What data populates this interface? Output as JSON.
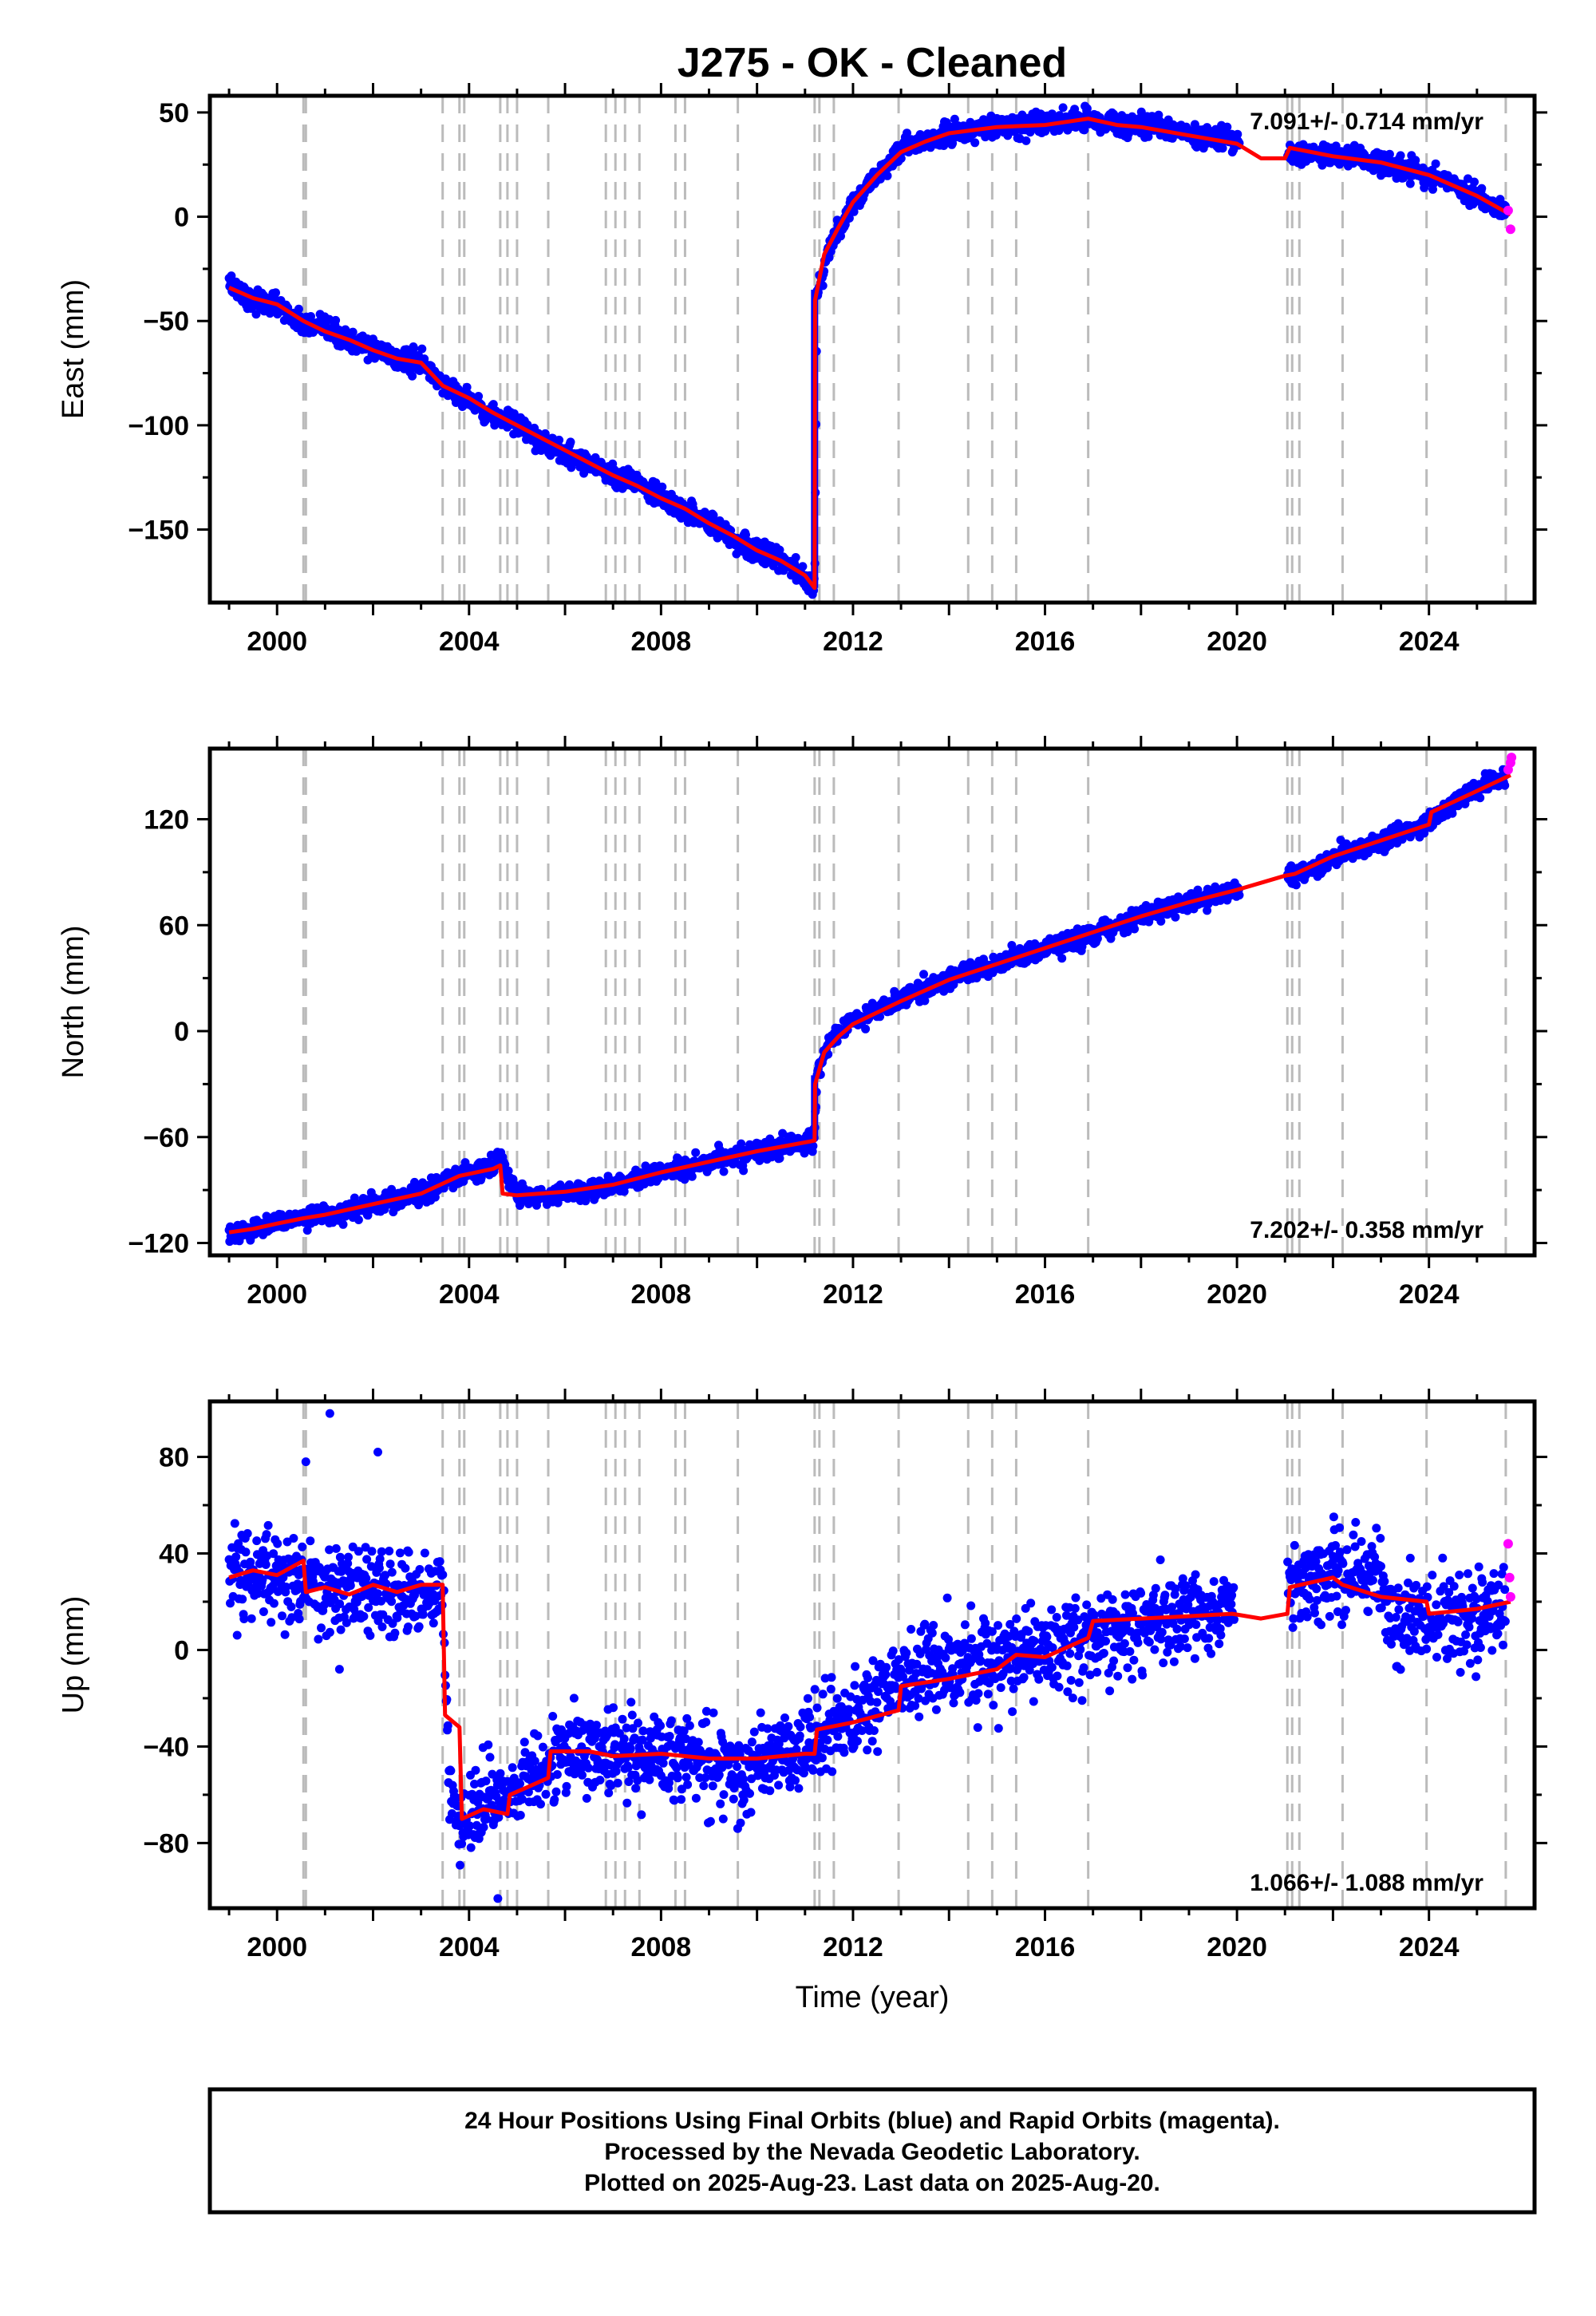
{
  "title": "J275  - OK - Cleaned",
  "x_tick_labels": [
    "2000",
    "2004",
    "2008",
    "2012",
    "2016",
    "2020",
    "2024"
  ],
  "x_axis_label": "Time (year)",
  "colors": {
    "final_orbits": "#0000ff",
    "rapid_orbits": "#ff00ff",
    "model": "#ff0000",
    "event_lines": "#bbbbbb",
    "frame": "#000000"
  },
  "footer": {
    "line1": "24 Hour Positions Using Final Orbits (blue) and Rapid Orbits (magenta).",
    "line2": "Processed by the Nevada Geodetic Laboratory.",
    "line3": "Plotted on 2025-Aug-23. Last data on 2025-Aug-20."
  },
  "chart_data": [
    {
      "type": "scatter",
      "panel": "east",
      "ylabel": "East (mm)",
      "xlabel": "",
      "xlim": [
        1998.6,
        2026.2
      ],
      "ylim": [
        -185,
        58
      ],
      "yticks": [
        50,
        0,
        -50,
        -100,
        -150
      ],
      "y_tick_labels": [
        "50",
        "0",
        "−50",
        "−100",
        "−150"
      ],
      "rate_text": "7.091+/- 0.714 mm/yr",
      "rate_position": "top-right",
      "event_lines": [
        2000.55,
        2000.6,
        2003.45,
        2003.8,
        2003.9,
        2004.65,
        2004.8,
        2005.0,
        2005.65,
        2006.85,
        2007.05,
        2007.25,
        2007.55,
        2008.3,
        2008.5,
        2009.6,
        2011.2,
        2011.3,
        2011.6,
        2012.95,
        2014.4,
        2014.9,
        2015.4,
        2016.9,
        2021.05,
        2021.15,
        2021.3,
        2022.2,
        2023.95,
        2025.6
      ],
      "series": [
        {
          "role": "final-orbits",
          "x": [
            1999.0,
            1999.5,
            2000.0,
            2000.55,
            2001.0,
            2001.5,
            2002.0,
            2002.5,
            2003.0,
            2003.45,
            2004.0,
            2004.5,
            2005.0,
            2005.5,
            2006.0,
            2006.5,
            2007.0,
            2007.5,
            2008.0,
            2008.5,
            2009.0,
            2009.5,
            2010.0,
            2010.5,
            2011.0,
            2011.2,
            2011.25,
            2011.5,
            2012.0,
            2012.5,
            2013.0,
            2013.5,
            2014.0,
            2015.0,
            2016.0,
            2016.9,
            2017.5,
            2018.0,
            2019.0,
            2020.0,
            2021.2,
            2022.0,
            2023.0,
            2024.0,
            2025.0,
            2025.6
          ],
          "y": [
            -32,
            -40,
            -42,
            -52,
            -54,
            -60,
            -63,
            -68,
            -70,
            -80,
            -88,
            -95,
            -100,
            -107,
            -113,
            -118,
            -124,
            -128,
            -136,
            -140,
            -147,
            -154,
            -160,
            -165,
            -173,
            -178,
            -35,
            -15,
            5,
            20,
            32,
            36,
            40,
            43,
            44,
            47,
            44,
            44,
            40,
            36,
            30,
            30,
            26,
            20,
            10,
            2
          ]
        },
        {
          "role": "rapid-orbits",
          "x": [
            2025.65,
            2025.7
          ],
          "y": [
            3,
            -6
          ]
        },
        {
          "role": "model",
          "x": [
            1999.0,
            1999.5,
            2000.0,
            2000.55,
            2001.0,
            2001.5,
            2002.0,
            2002.5,
            2003.0,
            2003.45,
            2004.0,
            2004.5,
            2005.0,
            2005.5,
            2006.0,
            2006.5,
            2007.0,
            2007.5,
            2008.0,
            2008.5,
            2009.0,
            2009.5,
            2010.0,
            2010.5,
            2011.0,
            2011.2,
            2011.21,
            2011.4,
            2011.7,
            2012.0,
            2012.5,
            2013.0,
            2013.5,
            2014.0,
            2015.0,
            2016.0,
            2016.9,
            2017.5,
            2018.0,
            2019.0,
            2020.0,
            2020.5,
            2021.0,
            2021.1,
            2022.0,
            2023.0,
            2024.0,
            2025.0,
            2025.7
          ],
          "y": [
            -34,
            -39,
            -42,
            -50,
            -55,
            -59,
            -64,
            -68,
            -70,
            -81,
            -87,
            -94,
            -100,
            -106,
            -112,
            -118,
            -124,
            -129,
            -135,
            -140,
            -147,
            -153,
            -160,
            -165,
            -172,
            -178,
            -40,
            -18,
            -5,
            7,
            20,
            31,
            36,
            40,
            43,
            44,
            47,
            44,
            43,
            39,
            35,
            28,
            28,
            33,
            29,
            26,
            20,
            10,
            1
          ]
        }
      ]
    },
    {
      "type": "scatter",
      "panel": "north",
      "ylabel": "North (mm)",
      "xlabel": "",
      "xlim": [
        1998.6,
        2026.2
      ],
      "ylim": [
        -127,
        160
      ],
      "yticks": [
        120,
        60,
        0,
        -60,
        -120
      ],
      "y_tick_labels": [
        "120",
        "60",
        "0",
        "−60",
        "−120"
      ],
      "rate_text": "7.202+/- 0.358 mm/yr",
      "rate_position": "bottom-right",
      "event_lines": [
        2000.55,
        2000.6,
        2003.45,
        2003.8,
        2003.9,
        2004.65,
        2004.8,
        2005.0,
        2005.65,
        2006.85,
        2007.05,
        2007.25,
        2007.55,
        2008.3,
        2008.5,
        2009.6,
        2011.2,
        2011.3,
        2011.6,
        2012.95,
        2014.4,
        2014.9,
        2015.4,
        2016.9,
        2021.05,
        2021.15,
        2021.3,
        2022.2,
        2023.95,
        2025.6
      ],
      "series": [
        {
          "role": "final-orbits",
          "x": [
            1999.0,
            1999.5,
            2000.0,
            2000.55,
            2001.0,
            2002.0,
            2003.0,
            2003.8,
            2004.5,
            2004.65,
            2005.0,
            2006.0,
            2007.0,
            2008.0,
            2009.0,
            2010.0,
            2011.0,
            2011.2,
            2011.25,
            2011.5,
            2012.0,
            2013.0,
            2014.0,
            2015.0,
            2016.0,
            2017.0,
            2018.0,
            2019.0,
            2020.0,
            2021.2,
            2022.0,
            2023.0,
            2024.0,
            2024.5,
            2025.0,
            2025.6
          ],
          "y": [
            -115,
            -112,
            -108,
            -106,
            -104,
            -98,
            -92,
            -82,
            -76,
            -72,
            -94,
            -92,
            -88,
            -80,
            -74,
            -68,
            -62,
            -60,
            -25,
            -5,
            5,
            18,
            30,
            38,
            47,
            55,
            65,
            73,
            80,
            88,
            98,
            108,
            118,
            130,
            137,
            145
          ]
        },
        {
          "role": "rapid-orbits",
          "x": [
            2025.65,
            2025.7,
            2025.72
          ],
          "y": [
            148,
            152,
            155
          ]
        },
        {
          "role": "model",
          "x": [
            1999.0,
            1999.5,
            2000.0,
            2000.55,
            2001.0,
            2002.0,
            2003.0,
            2003.8,
            2004.5,
            2004.65,
            2004.7,
            2005.0,
            2006.0,
            2007.0,
            2008.0,
            2009.0,
            2010.0,
            2011.0,
            2011.2,
            2011.21,
            2011.4,
            2011.7,
            2012.0,
            2013.0,
            2014.0,
            2015.0,
            2016.0,
            2017.0,
            2018.0,
            2019.0,
            2020.0,
            2020.5,
            2021.0,
            2021.2,
            2022.0,
            2023.0,
            2024.0,
            2024.05,
            2025.0,
            2025.7
          ],
          "y": [
            -114,
            -112,
            -109,
            -106,
            -104,
            -98,
            -92,
            -82,
            -78,
            -76,
            -92,
            -93,
            -91,
            -87,
            -80,
            -74,
            -68,
            -63,
            -62,
            -30,
            -12,
            -3,
            4,
            17,
            29,
            38,
            47,
            56,
            65,
            73,
            80,
            84,
            88,
            89,
            99,
            108,
            117,
            124,
            136,
            145
          ]
        }
      ]
    },
    {
      "type": "scatter",
      "panel": "up",
      "ylabel": "Up (mm)",
      "xlabel": "Time (year)",
      "xlim": [
        1998.6,
        2026.2
      ],
      "ylim": [
        -107,
        103
      ],
      "yticks": [
        80,
        40,
        0,
        -40,
        -80
      ],
      "y_tick_labels": [
        "80",
        "40",
        "0",
        "−40",
        "−80"
      ],
      "rate_text": "1.066+/- 1.088 mm/yr",
      "rate_position": "bottom-right",
      "event_lines": [
        2000.55,
        2000.6,
        2003.45,
        2003.8,
        2003.9,
        2004.65,
        2004.8,
        2005.0,
        2005.65,
        2006.85,
        2007.05,
        2007.25,
        2007.55,
        2008.3,
        2008.5,
        2009.6,
        2011.2,
        2011.3,
        2011.6,
        2012.95,
        2014.4,
        2014.9,
        2015.4,
        2016.9,
        2021.05,
        2021.15,
        2021.3,
        2022.2,
        2023.95,
        2025.6
      ],
      "series": [
        {
          "role": "final-orbits",
          "x": [
            1999.0,
            1999.5,
            2000.0,
            2000.55,
            2001.0,
            2001.5,
            2002.0,
            2002.5,
            2003.0,
            2003.45,
            2003.6,
            2003.8,
            2004.3,
            2004.8,
            2005.2,
            2005.65,
            2006.0,
            2007.0,
            2008.0,
            2009.0,
            2010.0,
            2011.0,
            2011.3,
            2012.0,
            2012.95,
            2014.0,
            2015.0,
            2016.0,
            2017.0,
            2018.0,
            2019.0,
            2019.9,
            2021.15,
            2022.0,
            2023.0,
            2023.2,
            2024.0,
            2025.0,
            2025.6
          ],
          "y": [
            30,
            32,
            30,
            28,
            25,
            26,
            24,
            25,
            23,
            23,
            -62,
            -70,
            -65,
            -60,
            -52,
            -45,
            -42,
            -43,
            -44,
            -46,
            -46,
            -40,
            -33,
            -30,
            -12,
            -8,
            -5,
            0,
            8,
            10,
            15,
            18,
            28,
            30,
            30,
            12,
            12,
            14,
            16
          ]
        },
        {
          "role": "rapid-orbits",
          "x": [
            2025.65,
            2025.68,
            2025.7
          ],
          "y": [
            44,
            30,
            22
          ]
        },
        {
          "role": "model",
          "x": [
            1999.0,
            1999.5,
            2000.0,
            2000.55,
            2000.6,
            2001.0,
            2001.5,
            2002.0,
            2002.5,
            2003.0,
            2003.45,
            2003.5,
            2003.8,
            2003.85,
            2004.3,
            2004.8,
            2004.85,
            2005.2,
            2005.65,
            2005.7,
            2006.5,
            2007.0,
            2008.0,
            2009.0,
            2010.0,
            2011.0,
            2011.2,
            2011.25,
            2012.0,
            2012.95,
            2013.0,
            2014.0,
            2015.0,
            2015.4,
            2016.0,
            2016.9,
            2017.0,
            2018.0,
            2019.0,
            2019.9,
            2020.5,
            2021.05,
            2021.1,
            2022.0,
            2022.2,
            2023.0,
            2023.95,
            2024.0,
            2025.0,
            2025.7
          ],
          "y": [
            30,
            33,
            31,
            37,
            24,
            26,
            23,
            27,
            24,
            27,
            27,
            -27,
            -32,
            -70,
            -66,
            -68,
            -60,
            -57,
            -53,
            -42,
            -42,
            -44,
            -43,
            -45,
            -45,
            -43,
            -43,
            -33,
            -30,
            -25,
            -15,
            -12,
            -8,
            -2,
            -3,
            5,
            12,
            13,
            14,
            15,
            13,
            15,
            26,
            30,
            27,
            22,
            20,
            15,
            17,
            20
          ]
        }
      ]
    }
  ]
}
